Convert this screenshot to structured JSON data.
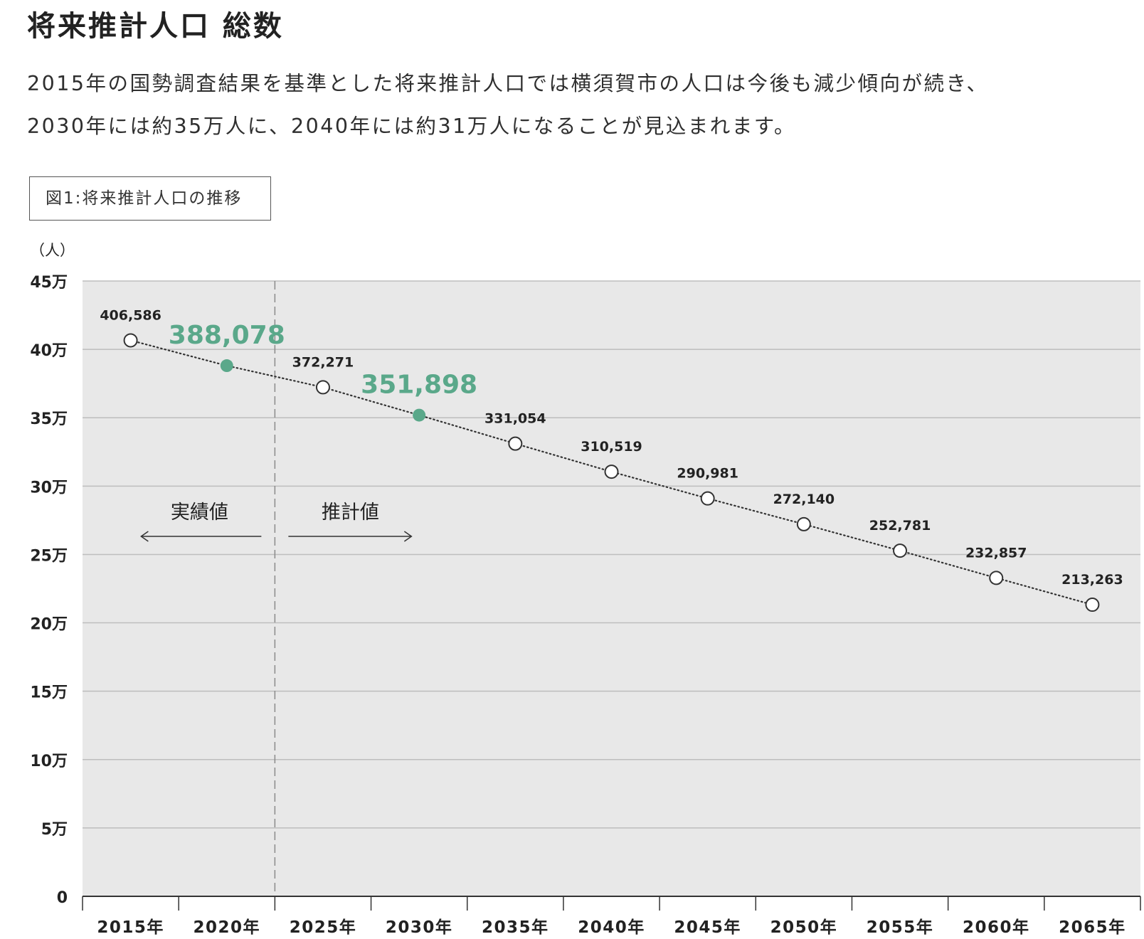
{
  "page": {
    "title": "将来推計人口 総数",
    "intro_line1": "2015年の国勢調査結果を基準とした将来推計人口では横須賀市の人口は今後も減少傾向が続き、",
    "intro_line2": "2030年には約35万人に、2040年には約31万人になることが見込まれます。"
  },
  "figure": {
    "caption": "図1:将来推計人口の推移"
  },
  "chart_data": {
    "type": "line",
    "title": "",
    "ylabel": "（人）",
    "xlabel": "",
    "ylim": [
      0,
      450000
    ],
    "y_ticks": [
      {
        "value": 0,
        "label": "0"
      },
      {
        "value": 50000,
        "label": "5万"
      },
      {
        "value": 100000,
        "label": "10万"
      },
      {
        "value": 150000,
        "label": "15万"
      },
      {
        "value": 200000,
        "label": "20万"
      },
      {
        "value": 250000,
        "label": "25万"
      },
      {
        "value": 300000,
        "label": "30万"
      },
      {
        "value": 350000,
        "label": "35万"
      },
      {
        "value": 400000,
        "label": "40万"
      },
      {
        "value": 450000,
        "label": "45万"
      }
    ],
    "categories": [
      "2015年",
      "2020年",
      "2025年",
      "2030年",
      "2035年",
      "2040年",
      "2045年",
      "2050年",
      "2055年",
      "2060年",
      "2065年"
    ],
    "grid": true,
    "line_style": "dotted",
    "series": [
      {
        "values": [
          406586,
          388078,
          372271,
          351898,
          331054,
          310519,
          290981,
          272140,
          252781,
          232857,
          213263
        ],
        "labels": [
          "406,586",
          "388,078",
          "372,271",
          "351,898",
          "331,054",
          "310,519",
          "290,981",
          "272,140",
          "252,781",
          "232,857",
          "213,263"
        ],
        "highlighted": [
          false,
          true,
          false,
          true,
          false,
          false,
          false,
          false,
          false,
          false,
          false
        ]
      }
    ],
    "divider": {
      "after_category": "2020年",
      "left_label": "実績値",
      "right_label": "推計値"
    },
    "colors": {
      "plot_background": "#e8e8e8",
      "grid": "#bdbdbd",
      "line": "#333333",
      "highlight": "#5aa88a",
      "marker_fill": "#ffffff",
      "text": "#222222"
    }
  }
}
